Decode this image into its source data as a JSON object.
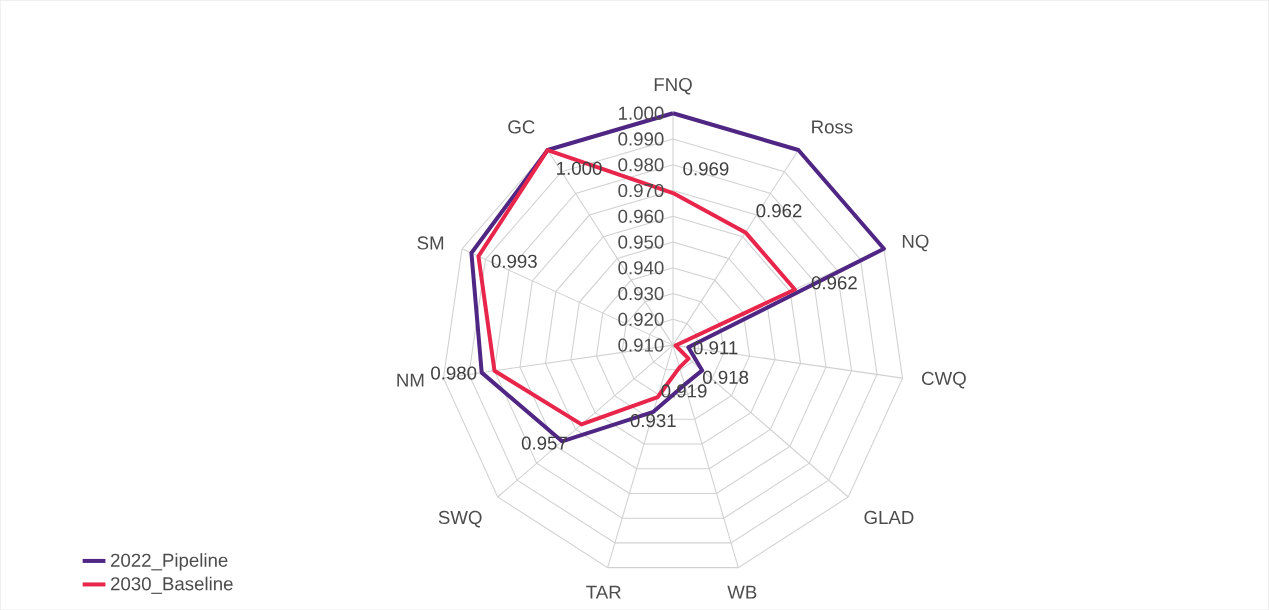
{
  "chart_data": {
    "type": "radar",
    "categories": [
      "FNQ",
      "Ross",
      "NQ",
      "CWQ",
      "GLAD",
      "WB",
      "TAR",
      "SWQ",
      "NM",
      "SM",
      "GC"
    ],
    "ylim": [
      0.91,
      1.0
    ],
    "yticks": [
      {
        "value": 0.91,
        "label": "0.910"
      },
      {
        "value": 0.92,
        "label": "0.920"
      },
      {
        "value": 0.93,
        "label": "0.930"
      },
      {
        "value": 0.94,
        "label": "0.940"
      },
      {
        "value": 0.95,
        "label": "0.950"
      },
      {
        "value": 0.96,
        "label": "0.960"
      },
      {
        "value": 0.97,
        "label": "0.970"
      },
      {
        "value": 0.98,
        "label": "0.980"
      },
      {
        "value": 0.99,
        "label": "0.990"
      },
      {
        "value": 1.0,
        "label": "1.000"
      }
    ],
    "series": [
      {
        "name": "2022_Pipeline",
        "color": "#4f2683",
        "values": [
          1.0,
          1.0,
          1.0,
          0.916,
          0.925,
          0.926,
          0.937,
          0.967,
          0.985,
          0.996,
          1.0
        ]
      },
      {
        "name": "2030_Baseline",
        "color": "#e8254a",
        "values": [
          0.969,
          0.962,
          0.962,
          0.911,
          0.918,
          0.919,
          0.931,
          0.957,
          0.98,
          0.993,
          1.0
        ],
        "value_labels": [
          "0.969",
          "0.962",
          "0.962",
          "0.911",
          "0.918",
          "0.919",
          "0.931",
          "0.957",
          "0.980",
          "0.993",
          "1.000"
        ]
      }
    ],
    "grid": true,
    "legend": "bottom left"
  }
}
